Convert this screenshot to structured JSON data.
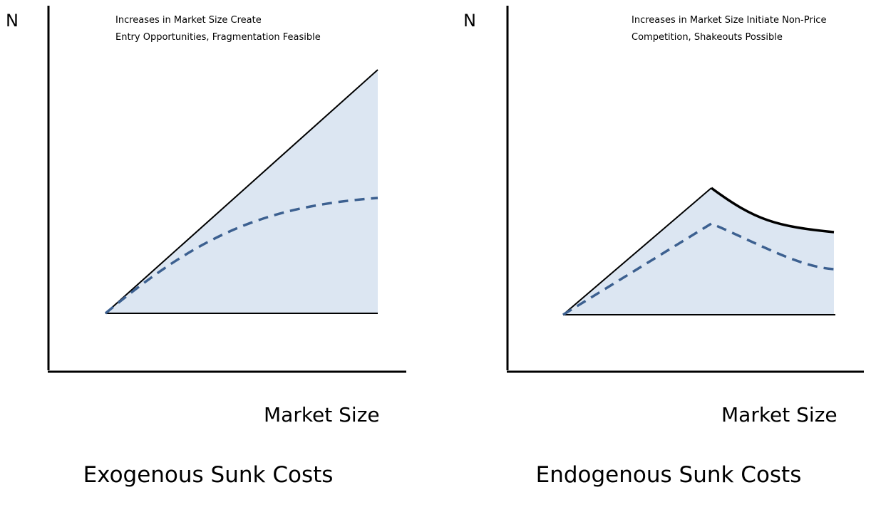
{
  "panels": [
    {
      "y_label": "N",
      "annotation": [
        "Increases in Market Size Create",
        "Entry Opportunities, Fragmentation Feasible"
      ],
      "x_label": "Market Size",
      "caption": "Exogenous Sunk Costs"
    },
    {
      "y_label": "N",
      "annotation": [
        "Increases in Market Size Initiate Non-Price",
        "Competition, Shakeouts Possible"
      ],
      "x_label": "Market Size",
      "caption": "Endogenous Sunk Costs"
    }
  ]
}
